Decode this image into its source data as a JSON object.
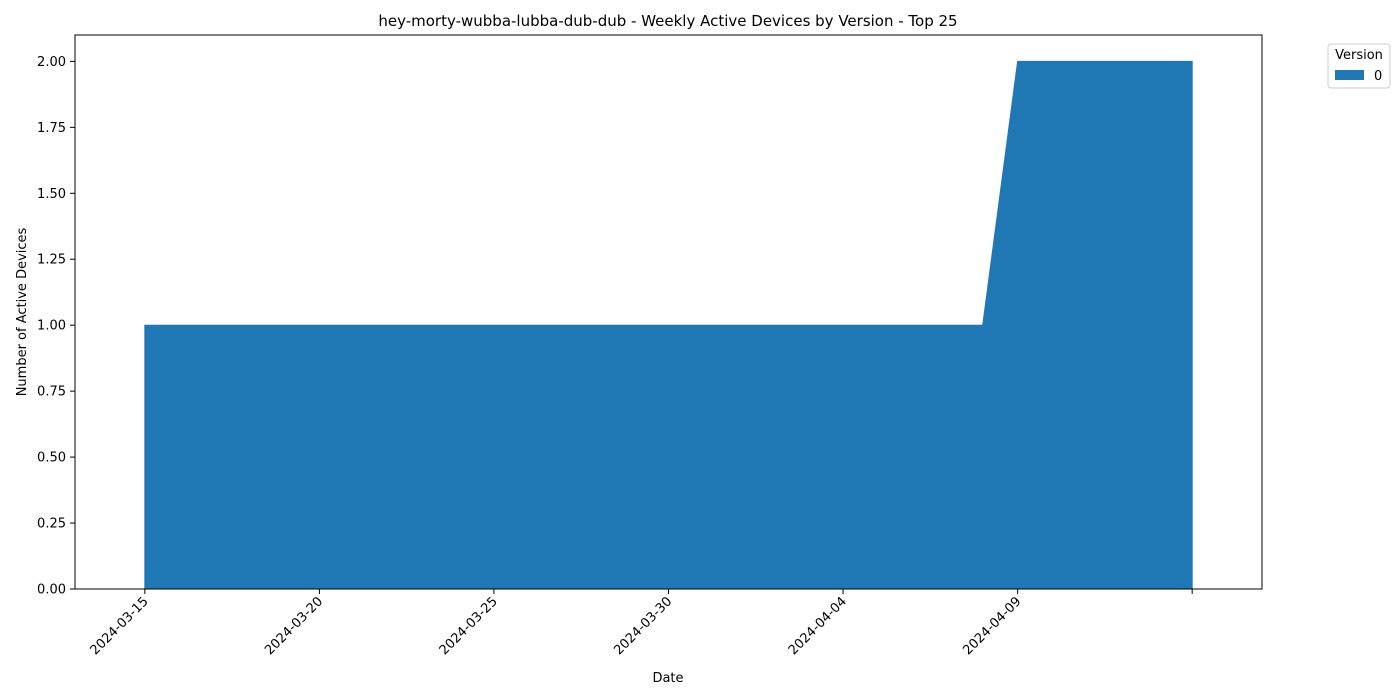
{
  "chart_data": {
    "type": "area",
    "title": "hey-morty-wubba-lubba-dub-dub - Weekly Active Devices by Version - Top 25",
    "xlabel": "Date",
    "ylabel": "Number of Active Devices",
    "x": [
      "2024-03-15",
      "2024-03-16",
      "2024-03-17",
      "2024-03-18",
      "2024-03-19",
      "2024-03-20",
      "2024-03-21",
      "2024-03-22",
      "2024-03-23",
      "2024-03-24",
      "2024-03-25",
      "2024-03-26",
      "2024-03-27",
      "2024-03-28",
      "2024-03-29",
      "2024-03-30",
      "2024-03-31",
      "2024-04-01",
      "2024-04-02",
      "2024-04-03",
      "2024-04-04",
      "2024-04-05",
      "2024-04-06",
      "2024-04-07",
      "2024-04-08",
      "2024-04-09",
      "2024-04-10",
      "2024-04-11",
      "2024-04-12",
      "2024-04-13",
      "2024-04-14"
    ],
    "series": [
      {
        "name": "0",
        "color": "#1f77b4",
        "values": [
          1,
          1,
          1,
          1,
          1,
          1,
          1,
          1,
          1,
          1,
          1,
          1,
          1,
          1,
          1,
          1,
          1,
          1,
          1,
          1,
          1,
          1,
          1,
          1,
          1,
          2,
          2,
          2,
          2,
          2,
          2
        ]
      }
    ],
    "xlim": [
      "2024-03-13",
      "2024-04-16"
    ],
    "ylim": [
      0,
      2.1
    ],
    "x_ticks": [
      "2024-03-15",
      "2024-03-20",
      "2024-03-25",
      "2024-03-30",
      "2024-04-04",
      "2024-04-09",
      "2024-04-14"
    ],
    "y_ticks": [
      0,
      0.25,
      0.5,
      0.75,
      1.0,
      1.25,
      1.5,
      1.75,
      2.0
    ],
    "y_tick_labels": [
      "0.00",
      "0.25",
      "0.50",
      "0.75",
      "1.00",
      "1.25",
      "1.50",
      "1.75",
      "2.00"
    ],
    "x_tick_labels": [
      "2024-03-15",
      "2024-03-20",
      "2024-03-25",
      "2024-03-30",
      "2024-04-04",
      "2024-04-09",
      ""
    ],
    "legend_title": "Version",
    "legend_placement": "outside-top-right",
    "grid": false
  }
}
